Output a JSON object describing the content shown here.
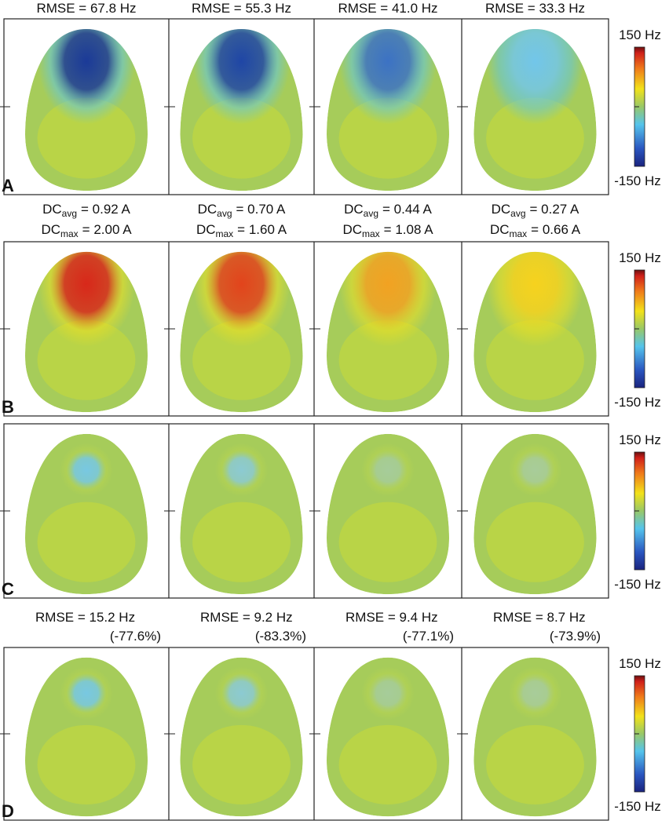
{
  "rows": [
    {
      "label": "A",
      "kind": "rmse",
      "headers": [
        "RMSE = 67.8 Hz",
        "RMSE = 55.3 Hz",
        "RMSE = 41.0 Hz",
        "RMSE = 33.3 Hz"
      ],
      "colorbar": {
        "max": "150 Hz",
        "min": "-150 Hz"
      }
    },
    {
      "label": "B",
      "kind": "dc",
      "headers": [
        {
          "avg": {
            "base": "DC",
            "sub": "avg",
            "value": "= 0.92 A"
          },
          "max": {
            "base": "DC",
            "sub": "max",
            "value": "= 2.00 A"
          }
        },
        {
          "avg": {
            "base": "DC",
            "sub": "avg",
            "value": "= 0.70 A"
          },
          "max": {
            "base": "DC",
            "sub": "max",
            "value": "= 1.60 A"
          }
        },
        {
          "avg": {
            "base": "DC",
            "sub": "avg",
            "value": "= 0.44 A"
          },
          "max": {
            "base": "DC",
            "sub": "max",
            "value": "= 1.08 A"
          }
        },
        {
          "avg": {
            "base": "DC",
            "sub": "avg",
            "value": "= 0.27 A"
          },
          "max": {
            "base": "DC",
            "sub": "max",
            "value": "= 0.66 A"
          }
        }
      ],
      "colorbar": {
        "max": "150 Hz",
        "min": "-150 Hz"
      }
    },
    {
      "label": "C",
      "kind": "none",
      "headers": [],
      "colorbar": {
        "max": "150 Hz",
        "min": "-150 Hz"
      }
    },
    {
      "label": "D",
      "kind": "rmse2",
      "headers": [
        {
          "rmse": "RMSE = 15.2 Hz",
          "change": "(-77.6%)"
        },
        {
          "rmse": "RMSE = 9.2 Hz",
          "change": "(-83.3%)"
        },
        {
          "rmse": "RMSE = 9.4 Hz",
          "change": "(-77.1%)"
        },
        {
          "rmse": "RMSE = 8.7 Hz",
          "change": "(-73.9%)"
        }
      ],
      "colorbar": {
        "max": "150 Hz",
        "min": "-150 Hz"
      }
    }
  ]
}
